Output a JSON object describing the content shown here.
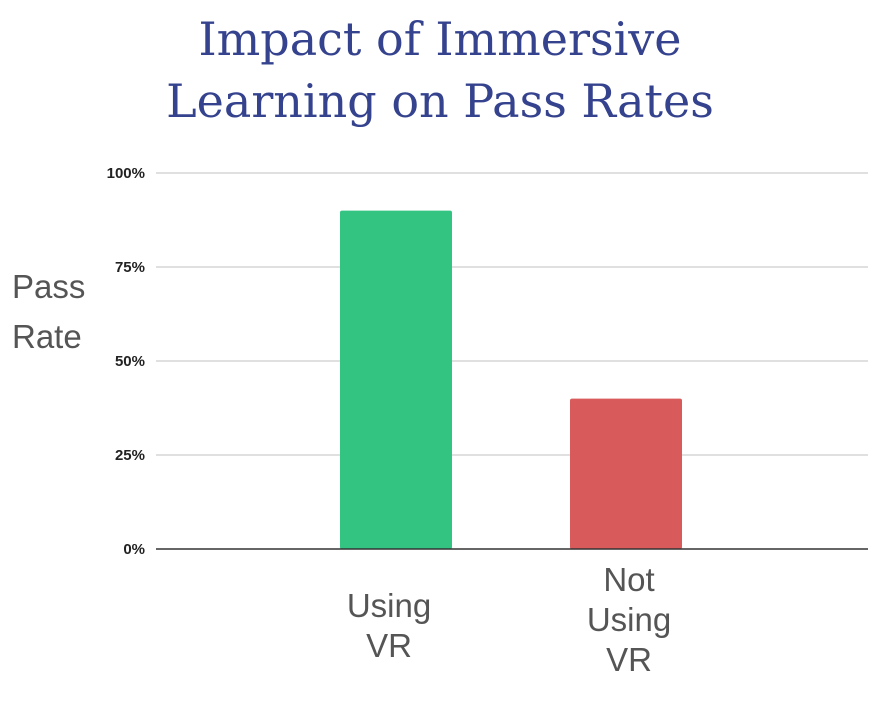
{
  "chart_data": {
    "type": "bar",
    "title_lines": [
      "Impact of Immersive",
      "Learning on Pass Rates"
    ],
    "ylabel_lines": [
      "Pass",
      "Rate"
    ],
    "xlabel": "",
    "categories": [
      "Using VR",
      "Not Using VR"
    ],
    "category_lines": [
      [
        "Using",
        "VR"
      ],
      [
        "Not",
        "Using",
        "VR"
      ]
    ],
    "values": [
      0.9,
      0.4
    ],
    "bar_colors": [
      "#33c482",
      "#d95a5a"
    ],
    "ylim": [
      0,
      1
    ],
    "yticks": [
      0,
      0.25,
      0.5,
      0.75,
      1
    ],
    "ytick_labels": [
      "0%",
      "25%",
      "50%",
      "75%",
      "100%"
    ],
    "grid": true,
    "legend": "none"
  }
}
